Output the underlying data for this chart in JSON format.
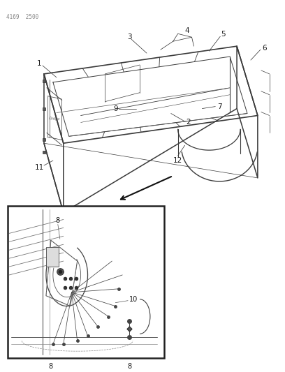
{
  "header_text": "4169  2500",
  "bg_color": "#ffffff",
  "fig_width": 4.08,
  "fig_height": 5.33,
  "dpi": 100,
  "line_color": "#3a3a3a",
  "label_color": "#1a1a1a",
  "leader_color": "#3a3a3a"
}
